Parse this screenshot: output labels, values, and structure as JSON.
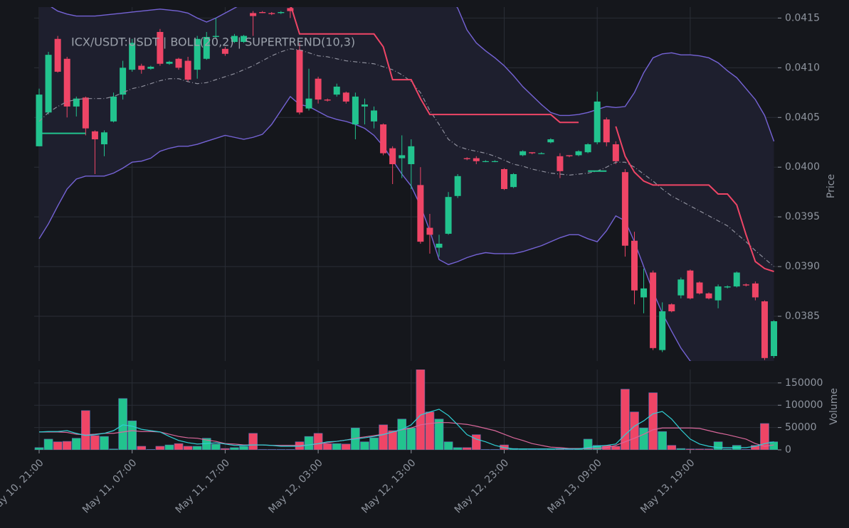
{
  "chart_data": {
    "type": "candlestick",
    "title": "ICX/USDT:USDT | BOLL(20,2) | SUPERTREND(10,3)",
    "categories": [
      "May 10, 21:00",
      null,
      null,
      null,
      null,
      null,
      null,
      null,
      null,
      null,
      "May 11, 07:00",
      null,
      null,
      null,
      null,
      null,
      null,
      null,
      null,
      null,
      "May 11, 17:00",
      null,
      null,
      null,
      null,
      null,
      null,
      null,
      null,
      null,
      "May 12, 03:00",
      null,
      null,
      null,
      null,
      null,
      null,
      null,
      null,
      null,
      "May 12, 13:00",
      null,
      null,
      null,
      null,
      null,
      null,
      null,
      null,
      null,
      "May 12, 23:00",
      null,
      null,
      null,
      null,
      null,
      null,
      null,
      null,
      null,
      "May 13, 09:00",
      null,
      null,
      null,
      null,
      null,
      null,
      null,
      null,
      null,
      "May 13, 19:00",
      null,
      null,
      null,
      null,
      null,
      null,
      null,
      null,
      null
    ],
    "open": [
      0.04021,
      0.04055,
      0.04129,
      0.04109,
      0.04061,
      0.0407,
      0.04036,
      0.04023,
      0.04046,
      0.04073,
      0.04098,
      0.04102,
      0.04099,
      0.04136,
      0.04104,
      0.04109,
      0.04107,
      0.04098,
      0.04109,
      0.04131,
      0.04119,
      0.04126,
      0.04126,
      0.04155,
      0.04156,
      0.04155,
      0.04155,
      0.0416,
      0.04118,
      0.04059,
      0.04089,
      0.04068,
      0.04073,
      0.04075,
      0.04043,
      0.04061,
      0.04046,
      0.04043,
      0.04019,
      0.04009,
      0.04003,
      0.03982,
      0.03939,
      0.03919,
      0.03933,
      0.03971,
      0.04009,
      0.04009,
      0.04006,
      0.04006,
      0.03998,
      0.0398,
      0.04012,
      0.04015,
      0.04014,
      0.04025,
      0.04011,
      0.04012,
      0.04012,
      0.04015,
      0.04025,
      0.04048,
      0.04023,
      0.03995,
      0.03926,
      0.03869,
      0.03894,
      0.03816,
      0.03862,
      0.03871,
      0.03896,
      0.03884,
      0.03873,
      0.03866,
      0.03879,
      0.0388,
      0.03882,
      0.03883,
      0.03865,
      0.0381
    ],
    "high": [
      0.04079,
      0.04116,
      0.04132,
      0.04111,
      0.04071,
      0.04071,
      0.04037,
      0.04037,
      0.04075,
      0.04107,
      0.04129,
      0.04104,
      0.04102,
      0.04139,
      0.04107,
      0.0411,
      0.04111,
      0.04132,
      0.04136,
      0.0415,
      0.04121,
      0.04134,
      0.04133,
      0.04157,
      0.04157,
      0.04156,
      0.04157,
      0.04163,
      0.04125,
      0.04099,
      0.04091,
      0.04069,
      0.04084,
      0.04076,
      0.04075,
      0.04069,
      0.04061,
      0.04044,
      0.04021,
      0.04032,
      0.04028,
      0.04,
      0.03953,
      0.03932,
      0.03975,
      0.03993,
      0.0401,
      0.04011,
      0.04007,
      0.04007,
      0.03999,
      0.03994,
      0.04017,
      0.04015,
      0.04015,
      0.04029,
      0.04014,
      0.04012,
      0.04017,
      0.04024,
      0.04076,
      0.0405,
      0.04026,
      0.03998,
      0.03935,
      0.03898,
      0.03896,
      0.03864,
      0.03863,
      0.03889,
      0.03897,
      0.03885,
      0.03874,
      0.03882,
      0.03881,
      0.03895,
      0.03883,
      0.03885,
      0.03866,
      0.03846
    ],
    "low": [
      0.04021,
      0.04053,
      0.04095,
      0.0405,
      0.04051,
      0.04032,
      0.03993,
      0.04011,
      0.04045,
      0.04068,
      0.04096,
      0.04094,
      0.04098,
      0.04102,
      0.04103,
      0.04098,
      0.04086,
      0.04089,
      0.04108,
      0.04129,
      0.04112,
      0.04125,
      0.04125,
      0.04132,
      0.04155,
      0.04153,
      0.04154,
      0.0415,
      0.04053,
      0.04057,
      0.04064,
      0.04066,
      0.04071,
      0.04064,
      0.04028,
      0.04043,
      0.04039,
      0.04012,
      0.03983,
      0.03989,
      0.03978,
      0.03923,
      0.03913,
      0.0391,
      0.03932,
      0.03969,
      0.04007,
      0.04003,
      0.04005,
      0.04005,
      0.03977,
      0.03979,
      0.04011,
      0.04013,
      0.04013,
      0.04024,
      0.03989,
      0.0401,
      0.04011,
      0.04014,
      0.04023,
      0.04021,
      0.04003,
      0.0391,
      0.03862,
      0.03853,
      0.03816,
      0.03814,
      0.03854,
      0.03868,
      0.03867,
      0.03872,
      0.03867,
      0.03858,
      0.03878,
      0.03879,
      0.0388,
      0.03866,
      0.03806,
      0.03808
    ],
    "close": [
      0.04073,
      0.04113,
      0.04096,
      0.04061,
      0.04069,
      0.04039,
      0.04028,
      0.04035,
      0.04071,
      0.041,
      0.04125,
      0.04098,
      0.04101,
      0.04104,
      0.04106,
      0.041,
      0.04088,
      0.04129,
      0.04131,
      0.04132,
      0.04114,
      0.04132,
      0.04132,
      0.04152,
      0.04155,
      0.04154,
      0.04156,
      0.04157,
      0.04055,
      0.04069,
      0.04068,
      0.04067,
      0.04081,
      0.04066,
      0.04071,
      0.04063,
      0.04057,
      0.04014,
      0.04003,
      0.04012,
      0.04021,
      0.03925,
      0.03932,
      0.03923,
      0.0397,
      0.03991,
      0.04008,
      0.04006,
      0.04006,
      0.04006,
      0.03978,
      0.03993,
      0.04016,
      0.04014,
      0.04014,
      0.04028,
      0.03996,
      0.04011,
      0.04016,
      0.04023,
      0.04066,
      0.04025,
      0.04006,
      0.03921,
      0.03876,
      0.03878,
      0.03818,
      0.03855,
      0.03855,
      0.03887,
      0.03868,
      0.03873,
      0.03868,
      0.0388,
      0.0388,
      0.03894,
      0.03881,
      0.03869,
      0.03808,
      0.03845
    ],
    "volume": [
      5000,
      24000,
      18000,
      19000,
      26000,
      88000,
      32000,
      30000,
      2000,
      115000,
      65000,
      8000,
      1000,
      8000,
      11000,
      14000,
      8000,
      8000,
      26000,
      13000,
      3000,
      5000,
      8000,
      37000,
      1000,
      1000,
      1000,
      1000,
      18000,
      30000,
      37000,
      14000,
      14000,
      13000,
      49000,
      18000,
      27000,
      56000,
      43000,
      69000,
      49000,
      180000,
      85000,
      69000,
      18000,
      5000,
      5000,
      34000,
      1000,
      1000,
      11000,
      3000,
      2000,
      1000,
      1000,
      2000,
      3000,
      1000,
      2000,
      24000,
      10000,
      10000,
      8000,
      136000,
      85000,
      49000,
      128000,
      41000,
      10000,
      3000,
      2000,
      2000,
      2000,
      18000,
      2000,
      10000,
      1000,
      10000,
      59000,
      18000
    ],
    "up_color": "#22c38e",
    "down_color": "#ef4566",
    "ylim": [
      0.03805,
      0.04161
    ],
    "yticks": [
      0.0385,
      {
        "value": 0.039,
        "label": "0.0390"
      },
      0.0395,
      {
        "value": 0.04,
        "label": "0.0400"
      },
      0.0405,
      {
        "value": 0.041,
        "label": "0.0410"
      },
      0.0415
    ],
    "ylabel": "Price",
    "volume_ylim": [
      0,
      180000
    ],
    "volume_yticks": [
      0,
      50000,
      100000,
      150000
    ],
    "volume_label": "Volume",
    "grid": true,
    "band": {
      "color": "#7563d6",
      "fill": "#1e1f2e",
      "upper": [
        0.0417,
        0.04163,
        0.04157,
        0.04154,
        0.04152,
        0.04152,
        0.04152,
        0.04153,
        0.04154,
        0.04155,
        0.04156,
        0.04157,
        0.04158,
        0.04159,
        0.04158,
        0.04157,
        0.04155,
        0.0415,
        0.04146,
        0.0415,
        0.04155,
        0.0416,
        0.04165,
        0.0417,
        0.0418,
        0.0419,
        0.042,
        0.0421,
        0.0421,
        0.0421,
        0.0421,
        0.0421,
        0.0421,
        0.0421,
        0.0421,
        0.0421,
        0.0421,
        0.0421,
        0.0421,
        0.0421,
        0.042,
        0.042,
        0.042,
        0.0419,
        0.04172,
        0.0416,
        0.04138,
        0.04125,
        0.04117,
        0.0411,
        0.04102,
        0.04092,
        0.04081,
        0.04072,
        0.04063,
        0.04055,
        0.04052,
        0.04052,
        0.04053,
        0.04055,
        0.04058,
        0.04061,
        0.0406,
        0.04061,
        0.04075,
        0.04095,
        0.0411,
        0.04114,
        0.04115,
        0.04113,
        0.04113,
        0.04112,
        0.0411,
        0.04105,
        0.04097,
        0.0409,
        0.04079,
        0.04068,
        0.04052,
        0.04026
      ],
      "lower": [
        0.03928,
        0.03943,
        0.03961,
        0.03978,
        0.03988,
        0.03991,
        0.03991,
        0.03991,
        0.03994,
        0.03999,
        0.04005,
        0.04006,
        0.04009,
        0.04016,
        0.04019,
        0.04021,
        0.04021,
        0.04023,
        0.04026,
        0.04029,
        0.04032,
        0.0403,
        0.04028,
        0.0403,
        0.04033,
        0.04043,
        0.04057,
        0.04071,
        0.04063,
        0.04061,
        0.04056,
        0.04051,
        0.04048,
        0.04046,
        0.04043,
        0.04039,
        0.04032,
        0.04021,
        0.04007,
        0.03993,
        0.03981,
        0.03961,
        0.03936,
        0.03907,
        0.03902,
        0.03905,
        0.03909,
        0.03912,
        0.03914,
        0.03913,
        0.03913,
        0.03913,
        0.03915,
        0.03918,
        0.03921,
        0.03925,
        0.03929,
        0.03932,
        0.03932,
        0.03928,
        0.03925,
        0.03936,
        0.03951,
        0.03946,
        0.03925,
        0.039,
        0.03875,
        0.03853,
        0.03835,
        0.03818,
        0.03805,
        0.038,
        0.03795,
        0.0379,
        0.03787,
        0.03785,
        0.03783,
        0.03782,
        0.03782,
        0.03783
      ]
    },
    "overlays": [
      {
        "panel": "price",
        "color": "#8e8f9c",
        "dash": "dashdot",
        "values": [
          0.04046,
          0.04055,
          0.04061,
          0.04066,
          0.04068,
          0.04069,
          0.04069,
          0.04069,
          0.04071,
          0.04075,
          0.04079,
          0.04081,
          0.04084,
          0.04087,
          0.04089,
          0.04089,
          0.04086,
          0.04084,
          0.04085,
          0.04088,
          0.04091,
          0.04094,
          0.04098,
          0.04102,
          0.04107,
          0.04112,
          0.04116,
          0.04119,
          0.04118,
          0.04115,
          0.04112,
          0.04111,
          0.04109,
          0.04107,
          0.04106,
          0.04105,
          0.04104,
          0.04101,
          0.04098,
          0.04093,
          0.04086,
          0.04075,
          0.04057,
          0.04043,
          0.04028,
          0.04021,
          0.04018,
          0.04016,
          0.04014,
          0.04011,
          0.04007,
          0.04003,
          0.04001,
          0.03998,
          0.03996,
          0.03994,
          0.03993,
          0.03992,
          0.03993,
          0.03994,
          0.03996,
          0.04,
          0.04005,
          0.04005,
          0.04,
          0.03993,
          0.03986,
          0.03978,
          0.03971,
          0.03966,
          0.03961,
          0.03956,
          0.03951,
          0.03946,
          0.03941,
          0.03933,
          0.03925,
          0.03916,
          0.03908,
          0.039
        ]
      },
      {
        "panel": "price",
        "color": "#ef4566",
        "width": 2,
        "values": [
          null,
          null,
          null,
          null,
          null,
          null,
          null,
          null,
          null,
          null,
          null,
          null,
          null,
          null,
          null,
          null,
          null,
          null,
          null,
          null,
          null,
          null,
          null,
          0.04164,
          0.04164,
          0.04164,
          0.04164,
          0.04164,
          0.04134,
          0.04134,
          0.04134,
          0.04134,
          0.04134,
          0.04134,
          0.04134,
          0.04134,
          0.04134,
          0.04121,
          0.04088,
          0.04088,
          0.04088,
          0.04069,
          0.04053,
          0.04053,
          0.04053,
          0.04053,
          0.04053,
          0.04053,
          0.04053,
          0.04053,
          0.04053,
          0.04053,
          0.04053,
          0.04053,
          0.04053,
          0.04053,
          0.04045,
          0.04045,
          0.04045,
          null,
          null,
          null,
          0.04041,
          0.04011,
          0.03995,
          0.03986,
          0.03982,
          0.03982,
          0.03982,
          0.03982,
          0.03982,
          0.03982,
          0.03982,
          0.03973,
          0.03973,
          0.03962,
          0.03932,
          0.03905,
          0.03898,
          0.03895
        ]
      },
      {
        "panel": "price",
        "color": "#22c38e",
        "width": 2,
        "values": [
          0.04034,
          0.04034,
          0.04034,
          0.04034,
          0.04034,
          0.04034,
          null,
          null,
          null,
          null,
          null,
          null,
          null,
          null,
          null,
          null,
          null,
          null,
          null,
          null,
          null,
          null,
          null,
          null,
          null,
          null,
          null,
          null,
          null,
          null,
          null,
          null,
          null,
          null,
          null,
          null,
          null,
          null,
          null,
          null,
          null,
          null,
          null,
          null,
          null,
          null,
          null,
          null,
          null,
          null,
          null,
          null,
          null,
          null,
          null,
          null,
          null,
          null,
          null,
          0.03996,
          0.03996,
          0.03996,
          null,
          null,
          null,
          null,
          null,
          null,
          null,
          null,
          null,
          null,
          null,
          null,
          null,
          null,
          null,
          null,
          null,
          null
        ]
      },
      {
        "panel": "volume",
        "color": "#d9679a",
        "values": [
          40000,
          40000,
          40000,
          39000,
          35000,
          34000,
          35000,
          37000,
          37000,
          40000,
          43000,
          41000,
          41000,
          40000,
          35000,
          30000,
          27000,
          26000,
          22000,
          19000,
          14000,
          13000,
          11000,
          11000,
          11000,
          10000,
          10000,
          10000,
          10000,
          11000,
          13000,
          16000,
          19000,
          22000,
          26000,
          29000,
          32000,
          35000,
          40000,
          45000,
          49000,
          56000,
          59000,
          61000,
          61000,
          59000,
          57000,
          53000,
          48000,
          43000,
          35000,
          27000,
          21000,
          14000,
          10000,
          6000,
          5000,
          3000,
          3000,
          3000,
          3000,
          5000,
          10000,
          18000,
          26000,
          35000,
          45000,
          49000,
          49000,
          49000,
          49000,
          48000,
          43000,
          38000,
          34000,
          29000,
          24000,
          14000,
          8000,
          11000
        ]
      },
      {
        "panel": "volume",
        "color": "#2fcfd4",
        "values": [
          40000,
          41000,
          41000,
          43000,
          37000,
          32000,
          34000,
          37000,
          43000,
          56000,
          53000,
          46000,
          43000,
          40000,
          30000,
          21000,
          16000,
          13000,
          14000,
          16000,
          13000,
          10000,
          10000,
          11000,
          11000,
          10000,
          8000,
          8000,
          8000,
          11000,
          14000,
          18000,
          19000,
          22000,
          24000,
          27000,
          30000,
          34000,
          40000,
          46000,
          56000,
          78000,
          85000,
          91000,
          77000,
          56000,
          34000,
          24000,
          18000,
          10000,
          5000,
          2000,
          2000,
          2000,
          2000,
          2000,
          2000,
          2000,
          2000,
          5000,
          8000,
          10000,
          13000,
          34000,
          53000,
          65000,
          81000,
          86000,
          69000,
          45000,
          24000,
          13000,
          8000,
          5000,
          5000,
          5000,
          5000,
          8000,
          14000,
          18000
        ]
      }
    ]
  }
}
